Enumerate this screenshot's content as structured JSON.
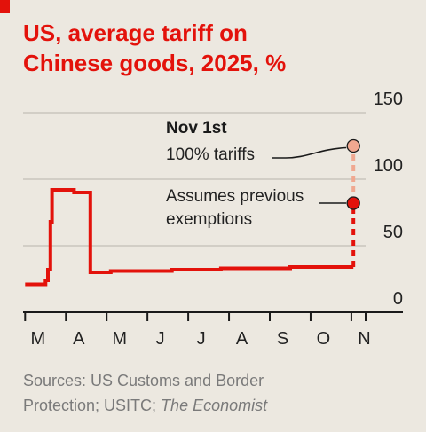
{
  "title": {
    "line1": "US, average tariff on",
    "line2": "Chinese goods, 2025, %"
  },
  "annotations": {
    "nov1st_heading": "Nov 1st",
    "nov1st_text": "100% tariffs",
    "assumes_line1": "Assumes previous",
    "assumes_line2": "exemptions"
  },
  "source": {
    "line1": "Sources: US Customs and Border",
    "line2_prefix": "Protection; USITC; ",
    "line2_italic": "The Economist"
  },
  "colors": {
    "title": "#e3120b",
    "line": "#e3120b",
    "projection_light": "#f0a890",
    "background": "#ece8e0",
    "grid": "#d2cec6",
    "axis": "#1a1a1a",
    "text": "#222222",
    "source": "#7a7a7a"
  },
  "chart_data": {
    "type": "line",
    "title": "US, average tariff on Chinese goods, 2025, %",
    "xlabel": "",
    "ylabel": "",
    "y_axis_position": "right",
    "ylim": [
      0,
      150
    ],
    "xlim": [
      2.95,
      11.35
    ],
    "y_ticks": [
      0,
      50,
      100,
      150
    ],
    "x_ticks": [
      {
        "label": "M",
        "month": 3
      },
      {
        "label": "A",
        "month": 4
      },
      {
        "label": "M",
        "month": 5
      },
      {
        "label": "J",
        "month": 6
      },
      {
        "label": "J",
        "month": 7
      },
      {
        "label": "A",
        "month": 8
      },
      {
        "label": "S",
        "month": 9
      },
      {
        "label": "O",
        "month": 10
      },
      {
        "label": "N",
        "month": 11
      }
    ],
    "grid": true,
    "series": [
      {
        "style": "solid",
        "points": [
          [
            3.0,
            21
          ],
          [
            3.5,
            21
          ],
          [
            3.5,
            24
          ],
          [
            3.56,
            24
          ],
          [
            3.56,
            32
          ],
          [
            3.62,
            32
          ],
          [
            3.62,
            68
          ],
          [
            3.66,
            68
          ],
          [
            3.66,
            92
          ],
          [
            4.2,
            92
          ],
          [
            4.2,
            90
          ],
          [
            4.6,
            90
          ],
          [
            4.6,
            30
          ],
          [
            5.1,
            30
          ],
          [
            5.1,
            31
          ],
          [
            6.6,
            31
          ],
          [
            6.6,
            32
          ],
          [
            7.8,
            32
          ],
          [
            7.8,
            33
          ],
          [
            9.5,
            33
          ],
          [
            9.5,
            34
          ],
          [
            11.05,
            34
          ]
        ]
      },
      {
        "name": "Assumes previous exemptions",
        "style": "dashed",
        "points": [
          [
            11.05,
            34
          ],
          [
            11.05,
            82
          ]
        ],
        "marker": [
          11.05,
          82
        ]
      },
      {
        "name": "Nov 1st 100% tariffs",
        "style": "dashed-light",
        "points": [
          [
            11.05,
            82
          ],
          [
            11.05,
            125
          ]
        ],
        "marker": [
          11.05,
          125
        ]
      }
    ]
  }
}
